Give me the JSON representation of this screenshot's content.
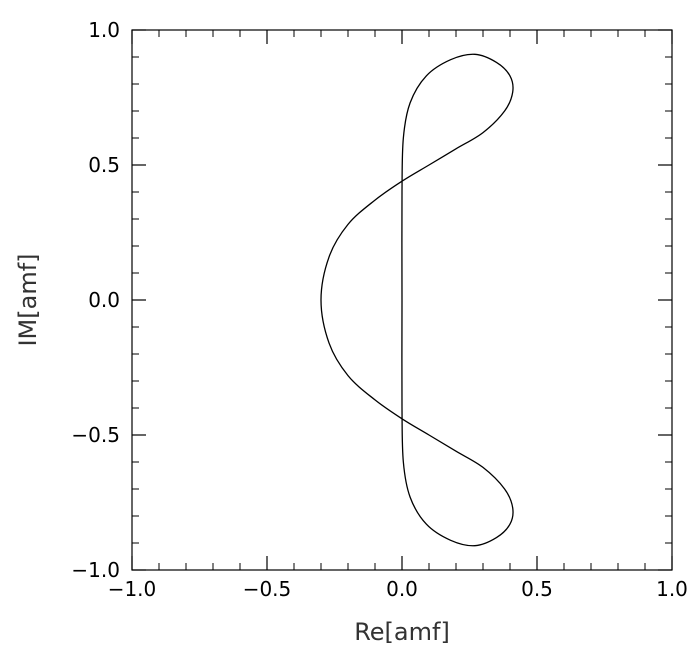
{
  "chart_data": {
    "type": "line",
    "title": "",
    "xlabel": "Re[amf]",
    "ylabel": "IM[amf]",
    "xlim": [
      -1.0,
      1.0
    ],
    "ylim": [
      -1.0,
      1.0
    ],
    "x_ticks": [
      -1.0,
      -0.5,
      0.0,
      0.5,
      1.0
    ],
    "y_ticks": [
      -1.0,
      -0.5,
      0.0,
      0.5,
      1.0
    ],
    "x_tick_labels": [
      "−1.0",
      "−0.5",
      "0.0",
      "0.5",
      "1.0"
    ],
    "y_tick_labels": [
      "−1.0",
      "−0.5",
      "0.0",
      "0.5",
      "1.0"
    ],
    "minor_ticks_per_major": 5,
    "grid": false,
    "line_color": "#000000",
    "series": [
      {
        "x": [
          0.0,
          0.0,
          0.005,
          0.03,
          0.09,
          0.18,
          0.27,
          0.35,
          0.4,
          0.41,
          0.38,
          0.3,
          0.2,
          0.1,
          0.0,
          -0.1,
          -0.2,
          -0.27,
          -0.3,
          -0.27,
          -0.2,
          -0.1,
          0.0,
          0.1,
          0.2,
          0.3,
          0.38,
          0.41,
          0.4,
          0.35,
          0.27,
          0.18,
          0.09,
          0.03,
          0.005,
          0.0,
          0.0
        ],
        "y": [
          0.0,
          0.4,
          0.6,
          0.73,
          0.83,
          0.89,
          0.91,
          0.88,
          0.83,
          0.77,
          0.7,
          0.62,
          0.56,
          0.5,
          0.44,
          0.37,
          0.28,
          0.16,
          0.0,
          -0.16,
          -0.28,
          -0.37,
          -0.44,
          -0.5,
          -0.56,
          -0.62,
          -0.7,
          -0.77,
          -0.83,
          -0.88,
          -0.91,
          -0.89,
          -0.83,
          -0.73,
          -0.6,
          -0.4,
          0.0
        ]
      }
    ]
  }
}
